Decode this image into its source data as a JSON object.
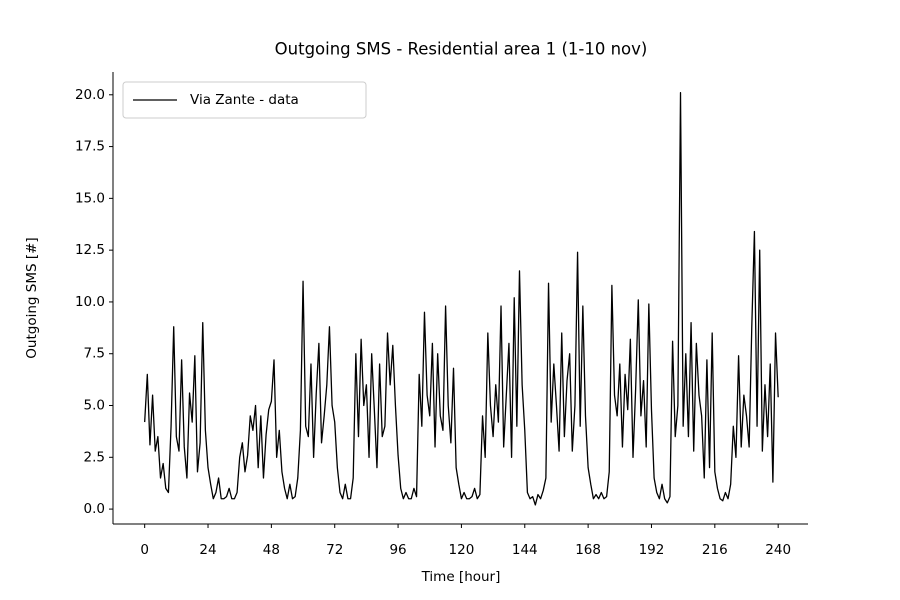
{
  "chart_data": {
    "type": "line",
    "title": "Outgoing SMS - Residential area 1 (1-10 nov)",
    "x_label": "Time [hour]",
    "y_label": "Outgoing SMS [#]",
    "x": [
      0,
      1,
      2,
      3,
      4,
      5,
      6,
      7,
      8,
      9,
      10,
      11,
      12,
      13,
      14,
      15,
      16,
      17,
      18,
      19,
      20,
      21,
      22,
      23,
      24,
      25,
      26,
      27,
      28,
      29,
      30,
      31,
      32,
      33,
      34,
      35,
      36,
      37,
      38,
      39,
      40,
      41,
      42,
      43,
      44,
      45,
      46,
      47,
      48,
      49,
      50,
      51,
      52,
      53,
      54,
      55,
      56,
      57,
      58,
      59,
      60,
      61,
      62,
      63,
      64,
      65,
      66,
      67,
      68,
      69,
      70,
      71,
      72,
      73,
      74,
      75,
      76,
      77,
      78,
      79,
      80,
      81,
      82,
      83,
      84,
      85,
      86,
      87,
      88,
      89,
      90,
      91,
      92,
      93,
      94,
      95,
      96,
      97,
      98,
      99,
      100,
      101,
      102,
      103,
      104,
      105,
      106,
      107,
      108,
      109,
      110,
      111,
      112,
      113,
      114,
      115,
      116,
      117,
      118,
      119,
      120,
      121,
      122,
      123,
      124,
      125,
      126,
      127,
      128,
      129,
      130,
      131,
      132,
      133,
      134,
      135,
      136,
      137,
      138,
      139,
      140,
      141,
      142,
      143,
      144,
      145,
      146,
      147,
      148,
      149,
      150,
      151,
      152,
      153,
      154,
      155,
      156,
      157,
      158,
      159,
      160,
      161,
      162,
      163,
      164,
      165,
      166,
      167,
      168,
      169,
      170,
      171,
      172,
      173,
      174,
      175,
      176,
      177,
      178,
      179,
      180,
      181,
      182,
      183,
      184,
      185,
      186,
      187,
      188,
      189,
      190,
      191,
      192,
      193,
      194,
      195,
      196,
      197,
      198,
      199,
      200,
      201,
      202,
      203,
      204,
      205,
      206,
      207,
      208,
      209,
      210,
      211,
      212,
      213,
      214,
      215,
      216,
      217,
      218,
      219,
      220,
      221,
      222,
      223,
      224,
      225,
      226,
      227,
      228,
      229,
      230,
      231,
      232,
      233,
      234,
      235,
      236,
      237,
      238,
      239,
      240
    ],
    "series": [
      {
        "name": "Via Zante - data",
        "color": "#000000",
        "values": [
          4.2,
          6.5,
          3.1,
          5.5,
          2.8,
          3.5,
          1.5,
          2.2,
          1.0,
          0.8,
          4.0,
          8.8,
          3.5,
          2.8,
          7.2,
          3.0,
          1.5,
          5.6,
          4.2,
          7.4,
          1.8,
          3.2,
          9.0,
          3.8,
          2.0,
          1.2,
          0.5,
          0.8,
          1.5,
          0.5,
          0.5,
          0.6,
          1.0,
          0.5,
          0.5,
          0.8,
          2.5,
          3.2,
          1.8,
          2.6,
          4.5,
          3.8,
          5.0,
          2.0,
          4.5,
          1.5,
          3.6,
          4.8,
          5.2,
          7.2,
          2.5,
          3.8,
          1.8,
          1.0,
          0.5,
          1.2,
          0.5,
          0.6,
          1.5,
          3.8,
          11.0,
          4.0,
          3.5,
          7.0,
          2.5,
          5.6,
          8.0,
          3.2,
          4.5,
          6.0,
          8.8,
          5.0,
          4.2,
          2.0,
          0.8,
          0.5,
          1.2,
          0.5,
          0.5,
          1.5,
          7.5,
          3.5,
          8.2,
          5.0,
          6.0,
          2.5,
          7.5,
          4.8,
          2.0,
          7.0,
          3.5,
          4.0,
          8.5,
          6.0,
          7.9,
          5.0,
          2.6,
          1.0,
          0.5,
          0.8,
          0.5,
          0.5,
          1.0,
          0.6,
          6.5,
          4.0,
          9.5,
          5.5,
          4.5,
          8.0,
          3.0,
          7.5,
          4.5,
          3.8,
          9.8,
          5.0,
          3.2,
          6.8,
          2.0,
          1.2,
          0.5,
          0.8,
          0.5,
          0.5,
          0.6,
          1.0,
          0.5,
          0.7,
          4.5,
          2.5,
          8.5,
          5.0,
          3.5,
          6.0,
          4.2,
          9.8,
          3.0,
          5.5,
          8.0,
          2.5,
          10.2,
          4.0,
          11.5,
          6.0,
          3.8,
          0.8,
          0.5,
          0.6,
          0.2,
          0.7,
          0.5,
          0.9,
          1.5,
          10.9,
          4.2,
          7.0,
          5.0,
          2.8,
          8.5,
          3.5,
          6.2,
          7.5,
          2.8,
          5.0,
          12.4,
          4.0,
          9.8,
          4.5,
          2.0,
          1.2,
          0.5,
          0.7,
          0.5,
          0.8,
          0.5,
          0.6,
          1.8,
          10.8,
          5.5,
          4.5,
          7.0,
          3.0,
          6.5,
          4.8,
          8.2,
          2.5,
          5.8,
          10.1,
          4.5,
          6.2,
          3.0,
          9.9,
          4.8,
          1.5,
          0.8,
          0.5,
          1.2,
          0.5,
          0.3,
          0.6,
          8.1,
          3.5,
          5.0,
          20.1,
          4.0,
          7.5,
          3.5,
          9.0,
          2.8,
          8.0,
          5.5,
          4.5,
          1.5,
          7.2,
          2.0,
          8.5,
          1.8,
          1.0,
          0.5,
          0.4,
          0.8,
          0.5,
          1.2,
          4.0,
          2.5,
          7.4,
          3.0,
          5.5,
          4.5,
          3.0,
          8.8,
          13.4,
          4.0,
          12.5,
          2.8,
          6.0,
          3.5,
          7.0,
          1.3,
          8.5,
          5.4
        ]
      }
    ],
    "xlim": [
      -12,
      251.3
    ],
    "ylim": [
      -0.72,
      21.1
    ],
    "xticks": [
      0,
      24,
      48,
      72,
      96,
      120,
      144,
      168,
      192,
      216,
      240
    ],
    "yticks": [
      {
        "value": 0,
        "label": "0.0"
      },
      {
        "value": 2.5,
        "label": "2.5"
      },
      {
        "value": 5,
        "label": "5.0"
      },
      {
        "value": 7.5,
        "label": "7.5"
      },
      {
        "value": 10,
        "label": "10.0"
      },
      {
        "value": 12.5,
        "label": "12.5"
      },
      {
        "value": 15,
        "label": "15.0"
      },
      {
        "value": 17.5,
        "label": "17.5"
      },
      {
        "value": 20,
        "label": "20.0"
      }
    ],
    "grid": false,
    "legend": "upper left"
  }
}
